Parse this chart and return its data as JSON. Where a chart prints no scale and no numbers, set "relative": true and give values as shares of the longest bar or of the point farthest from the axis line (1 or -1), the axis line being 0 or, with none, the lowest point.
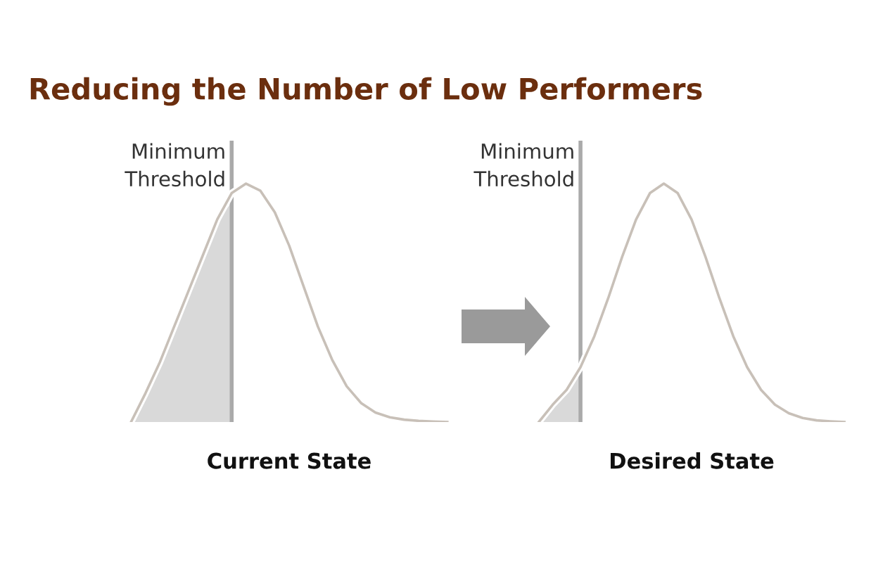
{
  "chart_data": [
    {
      "type": "line",
      "title": "Reducing the Number of Low Performers",
      "xlabel": "Current State",
      "relative": true,
      "categories": [
        null,
        null,
        null,
        null,
        null,
        null,
        null,
        null,
        null,
        null,
        null,
        null,
        null,
        null,
        null,
        null,
        null,
        null,
        null,
        null,
        null,
        null,
        null
      ],
      "series": [
        {
          "type": "area",
          "color": "#d9d9d9",
          "values": [
            0,
            0.12,
            0.25,
            0.4,
            0.55,
            0.7,
            0.85,
            0.92,
            null,
            null,
            null,
            null,
            null,
            null,
            null,
            null,
            null,
            null,
            null,
            null,
            null,
            null,
            null
          ]
        },
        {
          "color": "#c8c0b8",
          "values": [
            0,
            0.12,
            0.25,
            0.4,
            0.55,
            0.7,
            0.85,
            0.96,
            1.0,
            0.97,
            0.88,
            0.74,
            0.57,
            0.4,
            0.26,
            0.15,
            0.08,
            0.04,
            0.02,
            0.01,
            0.005,
            0.002,
            0
          ]
        }
      ],
      "annotations": [
        "Minimum\nThreshold"
      ]
    },
    {
      "type": "line",
      "xlabel": "Desired State",
      "relative": true,
      "categories": [
        null,
        null,
        null,
        null,
        null,
        null,
        null,
        null,
        null,
        null,
        null,
        null,
        null,
        null,
        null,
        null,
        null,
        null,
        null,
        null,
        null,
        null,
        null
      ],
      "series": [
        {
          "type": "area",
          "color": "#d9d9d9",
          "values": [
            0,
            0.073,
            0.135,
            0.23,
            null,
            null,
            null,
            null,
            null,
            null,
            null,
            null,
            null,
            null,
            null,
            null,
            null,
            null,
            null,
            null,
            null,
            null,
            null
          ]
        },
        {
          "color": "#c8c0b8",
          "values": [
            0,
            0.073,
            0.135,
            0.23,
            0.36,
            0.52,
            0.693,
            0.849,
            0.96,
            1.0,
            0.96,
            0.849,
            0.693,
            0.52,
            0.36,
            0.23,
            0.135,
            0.073,
            0.037,
            0.017,
            0.007,
            0.003,
            0
          ]
        }
      ],
      "annotations": [
        "Minimum\nThreshold"
      ]
    }
  ]
}
